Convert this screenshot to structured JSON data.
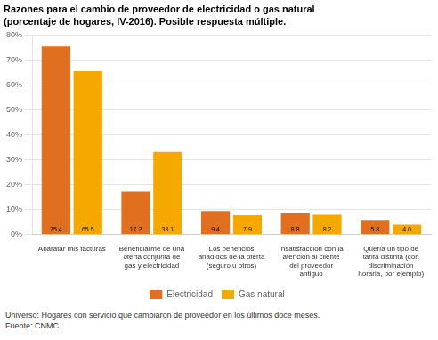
{
  "chart_data": {
    "type": "bar",
    "title": "Razones para el cambio de proveedor de electricidad o gas natural",
    "subtitle": "(porcentaje de hogares, IV-2016). Posible respuesta múltiple.",
    "categories": [
      "Abaratar mis facturas",
      "Beneficiarme de una\noferta conjunta de\ngas y electricidad",
      "Los beneficios\nañadidos de la oferta\n(seguro u otros)",
      "Insatisfacción con la\natención al cliente\ndel proveedor\nantiguo",
      "Quería un tipo de\ntarifa distinta (con\ndiscriminación\nhoraria, por ejemplo)"
    ],
    "series": [
      {
        "name": "Electricidad",
        "color": "#E07020",
        "values": [
          75.4,
          17.2,
          9.4,
          8.8,
          5.8
        ],
        "value_labels": [
          "75.4",
          "17.2",
          "9.4",
          "8.8",
          "5.8"
        ]
      },
      {
        "name": "Gas natural",
        "color": "#F5A800",
        "values": [
          65.5,
          33.1,
          7.9,
          8.2,
          4.0
        ],
        "value_labels": [
          "65.5",
          "33.1",
          "7.9",
          "8.2",
          "4.0"
        ]
      }
    ],
    "ylim": [
      0,
      80
    ],
    "yticks": [
      {
        "value": 0,
        "label": "0%"
      },
      {
        "value": 10,
        "label": "10%"
      },
      {
        "value": 20,
        "label": "20%"
      },
      {
        "value": 30,
        "label": "30%"
      },
      {
        "value": 40,
        "label": "40%"
      },
      {
        "value": 50,
        "label": "50%"
      },
      {
        "value": 60,
        "label": "60%"
      },
      {
        "value": 70,
        "label": "70%"
      },
      {
        "value": 80,
        "label": "80%"
      }
    ],
    "grid": true,
    "legend": "bottom",
    "data_labels": true,
    "annotations": [
      "Universo: Hogares con servicio que cambiaron de proveedor en los últimos doce meses.",
      "Fuente: CNMC."
    ]
  }
}
